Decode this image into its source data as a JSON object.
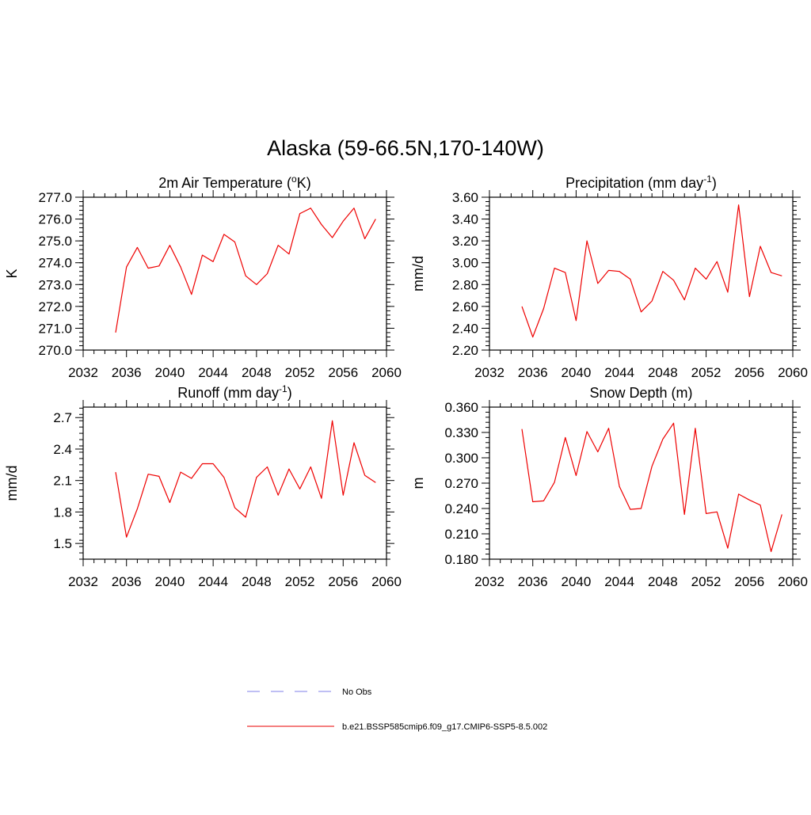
{
  "main_title": "Alaska (59-66.5N,170-140W)",
  "legend": {
    "items": [
      {
        "label": "No Obs",
        "color": "#9999ee",
        "dashed": true
      },
      {
        "label": "b.e21.BSSP585cmip6.f09_g17.CMIP6-SSP5-8.5.002",
        "color": "#ee3333",
        "dashed": false
      }
    ]
  },
  "chart_data": [
    {
      "type": "line",
      "title_text": "2m Air Temperature (",
      "title_sup": "o",
      "title_after": "K)",
      "ylabel": "K",
      "xlim": [
        2032,
        2060
      ],
      "ylim": [
        270.0,
        277.0
      ],
      "xticks": [
        "2032",
        "2036",
        "2040",
        "2044",
        "2048",
        "2052",
        "2056",
        "2060"
      ],
      "yticks": [
        "270.0",
        "271.0",
        "272.0",
        "273.0",
        "274.0",
        "275.0",
        "276.0",
        "277.0"
      ],
      "x": [
        2035,
        2036,
        2037,
        2038,
        2039,
        2040,
        2041,
        2042,
        2043,
        2044,
        2045,
        2046,
        2047,
        2048,
        2049,
        2050,
        2051,
        2052,
        2053,
        2054,
        2055,
        2056,
        2057,
        2058,
        2059
      ],
      "series": [
        {
          "color": "#ee0000",
          "values": [
            270.8,
            273.8,
            274.7,
            273.75,
            273.85,
            274.8,
            273.8,
            272.55,
            274.35,
            274.05,
            275.3,
            274.95,
            273.4,
            273.0,
            273.5,
            274.8,
            274.4,
            276.25,
            276.5,
            275.75,
            275.15,
            275.9,
            276.5,
            275.1,
            276.0
          ]
        }
      ]
    },
    {
      "type": "line",
      "title_text": "Precipitation (mm day",
      "title_sup": "-1",
      "title_after": ")",
      "ylabel": "mm/d",
      "xlim": [
        2032,
        2060
      ],
      "ylim": [
        2.2,
        3.6
      ],
      "xticks": [
        "2032",
        "2036",
        "2040",
        "2044",
        "2048",
        "2052",
        "2056",
        "2060"
      ],
      "yticks": [
        "2.20",
        "2.40",
        "2.60",
        "2.80",
        "3.00",
        "3.20",
        "3.40",
        "3.60"
      ],
      "x": [
        2035,
        2036,
        2037,
        2038,
        2039,
        2040,
        2041,
        2042,
        2043,
        2044,
        2045,
        2046,
        2047,
        2048,
        2049,
        2050,
        2051,
        2052,
        2053,
        2054,
        2055,
        2056,
        2057,
        2058,
        2059
      ],
      "series": [
        {
          "color": "#ee0000",
          "values": [
            2.6,
            2.32,
            2.58,
            2.95,
            2.91,
            2.47,
            3.2,
            2.81,
            2.93,
            2.92,
            2.85,
            2.55,
            2.65,
            2.92,
            2.84,
            2.66,
            2.95,
            2.85,
            3.01,
            2.73,
            3.53,
            2.69,
            3.15,
            2.91,
            2.88
          ]
        }
      ]
    },
    {
      "type": "line",
      "title_text": "Runoff (mm day",
      "title_sup": "-1",
      "title_after": ")",
      "ylabel": "mm/d",
      "xlim": [
        2032,
        2060
      ],
      "ylim": [
        1.35,
        2.8
      ],
      "xticks": [
        "2032",
        "2036",
        "2040",
        "2044",
        "2048",
        "2052",
        "2056",
        "2060"
      ],
      "yticks": [
        "1.5",
        "1.8",
        "2.1",
        "2.4",
        "2.7"
      ],
      "ytick_values": [
        1.5,
        1.8,
        2.1,
        2.4,
        2.7
      ],
      "x": [
        2035,
        2036,
        2037,
        2038,
        2039,
        2040,
        2041,
        2042,
        2043,
        2044,
        2045,
        2046,
        2047,
        2048,
        2049,
        2050,
        2051,
        2052,
        2053,
        2054,
        2055,
        2056,
        2057,
        2058,
        2059
      ],
      "series": [
        {
          "color": "#ee0000",
          "values": [
            2.18,
            1.56,
            1.83,
            2.16,
            2.14,
            1.89,
            2.18,
            2.12,
            2.26,
            2.26,
            2.13,
            1.84,
            1.75,
            2.13,
            2.23,
            1.96,
            2.21,
            2.02,
            2.23,
            1.93,
            2.67,
            1.96,
            2.46,
            2.15,
            2.08
          ]
        }
      ]
    },
    {
      "type": "line",
      "title_text": "Snow Depth (m)",
      "title_sup": "",
      "title_after": "",
      "ylabel": "m",
      "xlim": [
        2032,
        2060
      ],
      "ylim": [
        0.18,
        0.36
      ],
      "xticks": [
        "2032",
        "2036",
        "2040",
        "2044",
        "2048",
        "2052",
        "2056",
        "2060"
      ],
      "yticks": [
        "0.180",
        "0.210",
        "0.240",
        "0.270",
        "0.300",
        "0.330",
        "0.360"
      ],
      "x": [
        2035,
        2036,
        2037,
        2038,
        2039,
        2040,
        2041,
        2042,
        2043,
        2044,
        2045,
        2046,
        2047,
        2048,
        2049,
        2050,
        2051,
        2052,
        2053,
        2054,
        2055,
        2056,
        2057,
        2058,
        2059
      ],
      "series": [
        {
          "color": "#ee0000",
          "values": [
            0.334,
            0.248,
            0.249,
            0.271,
            0.324,
            0.279,
            0.331,
            0.307,
            0.335,
            0.266,
            0.239,
            0.24,
            0.29,
            0.322,
            0.341,
            0.233,
            0.335,
            0.234,
            0.236,
            0.193,
            0.257,
            0.25,
            0.244,
            0.189,
            0.233
          ]
        }
      ]
    }
  ]
}
